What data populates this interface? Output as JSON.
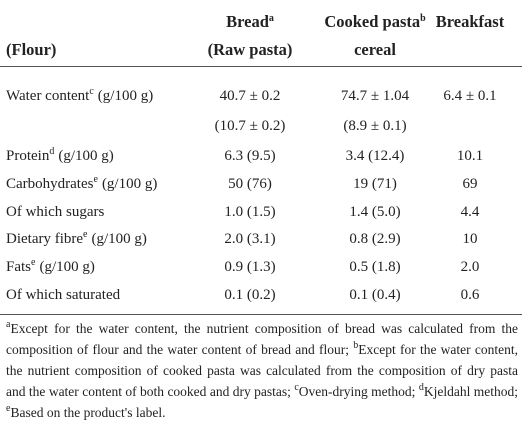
{
  "header": {
    "cells": [
      {
        "lines": [
          "(Flour)"
        ]
      },
      {
        "lines": [
          "Bread",
          "(Raw pasta)"
        ],
        "sup": "a"
      },
      {
        "lines": [
          "Cooked pasta",
          "cereal"
        ],
        "sup": "b"
      },
      {
        "lines": [
          "Breakfast"
        ]
      }
    ]
  },
  "table": {
    "rows": [
      {
        "label": {
          "name": "Water content",
          "sup": "c",
          "unit": "(g/100 g)"
        },
        "cells": [
          [
            "40.7 ± 0.2",
            "(10.7 ± 0.2)"
          ],
          [
            "74.7 ± 1.04",
            "(8.9 ± 0.1)"
          ],
          [
            "6.4 ± 0.1"
          ]
        ]
      },
      {
        "label": {
          "name": "Protein",
          "sup": "d",
          "unit": "(g/100 g)"
        },
        "cells": [
          [
            "6.3 (9.5)"
          ],
          [
            "3.4 (12.4)"
          ],
          [
            "10.1"
          ]
        ]
      },
      {
        "label": {
          "name": "Carbohydrates",
          "sup": "e",
          "unit": "(g/100 g)"
        },
        "cells": [
          [
            "50 (76)"
          ],
          [
            "19 (71)"
          ],
          [
            "69"
          ]
        ]
      },
      {
        "label": {
          "name": "Of which sugars"
        },
        "cells": [
          [
            "1.0 (1.5)"
          ],
          [
            "1.4 (5.0)"
          ],
          [
            "4.4"
          ]
        ]
      },
      {
        "label": {
          "name": "Dietary fibre",
          "sup": "e",
          "unit": "(g/100 g)"
        },
        "cells": [
          [
            "2.0 (3.1)"
          ],
          [
            "0.8 (2.9)"
          ],
          [
            "10"
          ]
        ]
      },
      {
        "label": {
          "name": "Fats",
          "sup": "e",
          "unit": "(g/100 g)"
        },
        "cells": [
          [
            "0.9 (1.3)"
          ],
          [
            "0.5 (1.8)"
          ],
          [
            "2.0"
          ]
        ]
      },
      {
        "label": {
          "name": "Of which saturated"
        },
        "cells": [
          [
            "0.1 (0.2)"
          ],
          [
            "0.1 (0.4)"
          ],
          [
            "0.6"
          ]
        ]
      }
    ]
  },
  "footnotes": [
    {
      "mark": "a",
      "text": "Except for the water content, the nutrient composition of bread was calculated from the composition of flour and the water content of bread and flour;"
    },
    {
      "mark": "b",
      "text": "Except for the water content, the nutrient composition of cooked pasta was calculated from the composition of dry pasta and the water content of both cooked and dry pastas;"
    },
    {
      "mark": "c",
      "text": "Oven-drying method;"
    },
    {
      "mark": "d",
      "text": "Kjeldahl method;"
    },
    {
      "mark": "e",
      "text": "Based on the product's label."
    }
  ]
}
